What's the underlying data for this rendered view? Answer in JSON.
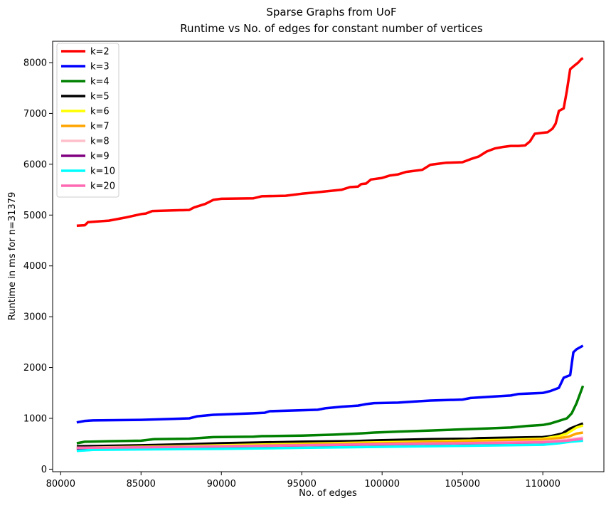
{
  "chart_data": {
    "type": "line",
    "title": "Sparse Graphs from UoF",
    "subtitle": "Runtime vs No. of edges for constant number of vertices",
    "xlabel": "No. of edges",
    "ylabel": "Runtime in ms for n=31379",
    "xlim": [
      79500,
      113800
    ],
    "ylim": [
      -50,
      8420
    ],
    "xticks": [
      80000,
      85000,
      90000,
      95000,
      100000,
      105000,
      110000
    ],
    "yticks": [
      0,
      1000,
      2000,
      3000,
      4000,
      5000,
      6000,
      7000,
      8000
    ],
    "grid": false,
    "legend_position": "top-left",
    "series": [
      {
        "name": "k=2",
        "color": "#ff0000",
        "points": [
          [
            81000,
            4790
          ],
          [
            81500,
            4800
          ],
          [
            81700,
            4860
          ],
          [
            83000,
            4890
          ],
          [
            84000,
            4950
          ],
          [
            85000,
            5020
          ],
          [
            85300,
            5030
          ],
          [
            85700,
            5080
          ],
          [
            88000,
            5100
          ],
          [
            88300,
            5150
          ],
          [
            89000,
            5220
          ],
          [
            89500,
            5300
          ],
          [
            90000,
            5320
          ],
          [
            92000,
            5330
          ],
          [
            92500,
            5370
          ],
          [
            94000,
            5380
          ],
          [
            95000,
            5420
          ],
          [
            96000,
            5450
          ],
          [
            97500,
            5500
          ],
          [
            98000,
            5550
          ],
          [
            98500,
            5560
          ],
          [
            98700,
            5610
          ],
          [
            99000,
            5620
          ],
          [
            99300,
            5700
          ],
          [
            100000,
            5730
          ],
          [
            100500,
            5780
          ],
          [
            101000,
            5800
          ],
          [
            101500,
            5850
          ],
          [
            102000,
            5870
          ],
          [
            102500,
            5890
          ],
          [
            103000,
            5990
          ],
          [
            103500,
            6010
          ],
          [
            104000,
            6030
          ],
          [
            105000,
            6040
          ],
          [
            105500,
            6100
          ],
          [
            106000,
            6150
          ],
          [
            106500,
            6250
          ],
          [
            107000,
            6310
          ],
          [
            107500,
            6340
          ],
          [
            108000,
            6360
          ],
          [
            108500,
            6360
          ],
          [
            108900,
            6370
          ],
          [
            109200,
            6450
          ],
          [
            109500,
            6600
          ],
          [
            110000,
            6620
          ],
          [
            110300,
            6630
          ],
          [
            110600,
            6700
          ],
          [
            110800,
            6800
          ],
          [
            111000,
            7050
          ],
          [
            111300,
            7100
          ],
          [
            111500,
            7450
          ],
          [
            111700,
            7870
          ],
          [
            112000,
            7950
          ],
          [
            112200,
            8000
          ],
          [
            112400,
            8070
          ],
          [
            112500,
            8090
          ]
        ]
      },
      {
        "name": "k=3",
        "color": "#0000ff",
        "points": [
          [
            81000,
            920
          ],
          [
            81500,
            950
          ],
          [
            82000,
            960
          ],
          [
            85000,
            970
          ],
          [
            88000,
            1000
          ],
          [
            88500,
            1040
          ],
          [
            89500,
            1070
          ],
          [
            92000,
            1100
          ],
          [
            92700,
            1110
          ],
          [
            93000,
            1140
          ],
          [
            95000,
            1160
          ],
          [
            96000,
            1170
          ],
          [
            96500,
            1200
          ],
          [
            97500,
            1230
          ],
          [
            98500,
            1250
          ],
          [
            99000,
            1280
          ],
          [
            99500,
            1300
          ],
          [
            101000,
            1310
          ],
          [
            102000,
            1330
          ],
          [
            103000,
            1350
          ],
          [
            105000,
            1370
          ],
          [
            105500,
            1400
          ],
          [
            107000,
            1430
          ],
          [
            108000,
            1450
          ],
          [
            108500,
            1480
          ],
          [
            110000,
            1500
          ],
          [
            110500,
            1540
          ],
          [
            111000,
            1600
          ],
          [
            111300,
            1800
          ],
          [
            111700,
            1850
          ],
          [
            111900,
            2300
          ],
          [
            112100,
            2360
          ],
          [
            112500,
            2430
          ]
        ]
      },
      {
        "name": "k=4",
        "color": "#008000",
        "points": [
          [
            81000,
            510
          ],
          [
            81500,
            540
          ],
          [
            83000,
            550
          ],
          [
            85000,
            560
          ],
          [
            85800,
            590
          ],
          [
            88000,
            600
          ],
          [
            88500,
            610
          ],
          [
            89500,
            630
          ],
          [
            92000,
            640
          ],
          [
            92500,
            650
          ],
          [
            95000,
            660
          ],
          [
            97000,
            680
          ],
          [
            98500,
            700
          ],
          [
            99500,
            720
          ],
          [
            101000,
            740
          ],
          [
            103000,
            760
          ],
          [
            105500,
            790
          ],
          [
            106500,
            800
          ],
          [
            108000,
            820
          ],
          [
            109000,
            850
          ],
          [
            110000,
            870
          ],
          [
            110500,
            900
          ],
          [
            111000,
            950
          ],
          [
            111500,
            1000
          ],
          [
            111800,
            1100
          ],
          [
            112100,
            1300
          ],
          [
            112500,
            1640
          ]
        ]
      },
      {
        "name": "k=5",
        "color": "#000000",
        "points": [
          [
            81000,
            450
          ],
          [
            85000,
            470
          ],
          [
            88000,
            490
          ],
          [
            90000,
            510
          ],
          [
            95000,
            540
          ],
          [
            98000,
            550
          ],
          [
            100000,
            570
          ],
          [
            103000,
            590
          ],
          [
            105500,
            600
          ],
          [
            106000,
            610
          ],
          [
            108000,
            620
          ],
          [
            110000,
            630
          ],
          [
            110500,
            650
          ],
          [
            111200,
            700
          ],
          [
            111700,
            800
          ],
          [
            112100,
            850
          ],
          [
            112500,
            900
          ]
        ]
      },
      {
        "name": "k=6",
        "color": "#ffff00",
        "points": [
          [
            81000,
            420
          ],
          [
            85000,
            440
          ],
          [
            90000,
            470
          ],
          [
            95000,
            500
          ],
          [
            100000,
            530
          ],
          [
            105000,
            560
          ],
          [
            108000,
            580
          ],
          [
            110000,
            600
          ],
          [
            111000,
            650
          ],
          [
            111500,
            700
          ],
          [
            112100,
            820
          ],
          [
            112500,
            860
          ]
        ]
      },
      {
        "name": "k=7",
        "color": "#ffa500",
        "points": [
          [
            81000,
            410
          ],
          [
            85000,
            430
          ],
          [
            90000,
            450
          ],
          [
            95000,
            480
          ],
          [
            100000,
            510
          ],
          [
            105000,
            540
          ],
          [
            108000,
            560
          ],
          [
            110000,
            580
          ],
          [
            111000,
            610
          ],
          [
            111600,
            640
          ],
          [
            112100,
            700
          ],
          [
            112500,
            720
          ]
        ]
      },
      {
        "name": "k=8",
        "color": "#ffc0cb",
        "points": [
          [
            81000,
            400
          ],
          [
            85000,
            420
          ],
          [
            90000,
            440
          ],
          [
            95000,
            460
          ],
          [
            100000,
            490
          ],
          [
            105000,
            510
          ],
          [
            110000,
            540
          ],
          [
            111500,
            580
          ],
          [
            112500,
            620
          ]
        ]
      },
      {
        "name": "k=9",
        "color": "#800080",
        "points": [
          [
            81000,
            390
          ],
          [
            85000,
            410
          ],
          [
            90000,
            430
          ],
          [
            95000,
            450
          ],
          [
            100000,
            470
          ],
          [
            105000,
            490
          ],
          [
            110000,
            510
          ],
          [
            111500,
            540
          ],
          [
            112500,
            570
          ]
        ]
      },
      {
        "name": "k=10",
        "color": "#00ffff",
        "points": [
          [
            81000,
            360
          ],
          [
            82000,
            380
          ],
          [
            85000,
            390
          ],
          [
            90000,
            400
          ],
          [
            95000,
            420
          ],
          [
            100000,
            440
          ],
          [
            105000,
            460
          ],
          [
            110000,
            480
          ],
          [
            111000,
            510
          ],
          [
            111700,
            540
          ],
          [
            112500,
            560
          ]
        ]
      },
      {
        "name": "k=20",
        "color": "#ff69b4",
        "points": [
          [
            81000,
            420
          ],
          [
            85000,
            430
          ],
          [
            90000,
            450
          ],
          [
            95000,
            470
          ],
          [
            100000,
            490
          ],
          [
            105000,
            510
          ],
          [
            110000,
            530
          ],
          [
            111500,
            560
          ],
          [
            112500,
            600
          ]
        ]
      }
    ]
  }
}
